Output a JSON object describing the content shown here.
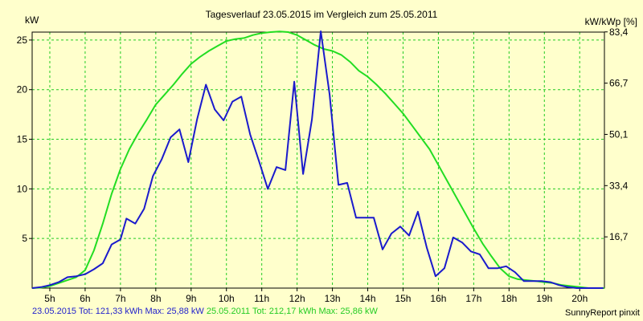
{
  "chart_data": {
    "type": "line",
    "title": "Tagesverlauf 23.05.2015 im Vergleich zum 25.05.2011",
    "ylabel_left": "kW",
    "ylabel_right": "kW/kWp [%]",
    "x_unit": "hour",
    "xlim": [
      4.5,
      20.7
    ],
    "ylim": [
      0,
      25.8
    ],
    "grid": true,
    "x_ticks": [
      {
        "value": 5,
        "label": "5h"
      },
      {
        "value": 6,
        "label": "6h"
      },
      {
        "value": 7,
        "label": "7h"
      },
      {
        "value": 8,
        "label": "8h"
      },
      {
        "value": 9,
        "label": "9h"
      },
      {
        "value": 10,
        "label": "10h"
      },
      {
        "value": 11,
        "label": "11h"
      },
      {
        "value": 12,
        "label": "12h"
      },
      {
        "value": 13,
        "label": "13h"
      },
      {
        "value": 14,
        "label": "14h"
      },
      {
        "value": 15,
        "label": "15h"
      },
      {
        "value": 16,
        "label": "16h"
      },
      {
        "value": 17,
        "label": "17h"
      },
      {
        "value": 18,
        "label": "18h"
      },
      {
        "value": 19,
        "label": "19h"
      },
      {
        "value": 20,
        "label": "20h"
      }
    ],
    "y_ticks_left": [
      {
        "value": 5,
        "label": "5"
      },
      {
        "value": 10,
        "label": "10"
      },
      {
        "value": 15,
        "label": "15"
      },
      {
        "value": 20,
        "label": "20"
      },
      {
        "value": 25,
        "label": "25"
      }
    ],
    "y_ticks_right": [
      {
        "value": 5.164,
        "label": "16,7"
      },
      {
        "value": 10.328,
        "label": "33,4"
      },
      {
        "value": 15.492,
        "label": "50,1"
      },
      {
        "value": 20.656,
        "label": "66,7"
      },
      {
        "value": 25.82,
        "label": "83,4"
      }
    ],
    "series": [
      {
        "name": "23.05.2015",
        "stats": "23.05.2015 Tot: 121,33 kWh Max: 25,88 kW",
        "color": "#1a1acc",
        "x": [
          4.5,
          4.75,
          5.0,
          5.25,
          5.5,
          5.75,
          6.0,
          6.25,
          6.5,
          6.75,
          7.0,
          7.17,
          7.42,
          7.67,
          7.92,
          8.17,
          8.42,
          8.67,
          8.92,
          9.17,
          9.42,
          9.67,
          9.92,
          10.17,
          10.42,
          10.67,
          10.92,
          11.17,
          11.42,
          11.67,
          11.92,
          12.17,
          12.42,
          12.67,
          12.92,
          13.17,
          13.42,
          13.67,
          13.92,
          14.17,
          14.42,
          14.67,
          14.92,
          15.17,
          15.42,
          15.67,
          15.92,
          16.17,
          16.42,
          16.67,
          16.92,
          17.17,
          17.42,
          17.67,
          17.92,
          18.17,
          18.42,
          18.67,
          18.92,
          19.17,
          19.42,
          19.67,
          19.92,
          20.17,
          20.42,
          20.67
        ],
        "y": [
          0,
          0.1,
          0.3,
          0.6,
          1.1,
          1.2,
          1.4,
          1.9,
          2.5,
          4.4,
          4.9,
          7.0,
          6.5,
          8.0,
          11.3,
          13.0,
          15.2,
          16.0,
          12.7,
          17.0,
          20.5,
          18.0,
          16.9,
          18.8,
          19.3,
          15.5,
          12.8,
          10.0,
          12.2,
          11.9,
          20.8,
          11.5,
          17.0,
          25.88,
          19.5,
          10.4,
          10.6,
          7.1,
          7.1,
          7.1,
          3.9,
          5.5,
          6.2,
          5.3,
          7.7,
          4.1,
          1.2,
          2.0,
          5.1,
          4.6,
          3.7,
          3.4,
          2.0,
          2.0,
          2.2,
          1.6,
          0.7,
          0.7,
          0.7,
          0.6,
          0.3,
          0.1,
          0,
          0,
          0,
          0
        ]
      },
      {
        "name": "25.05.2011",
        "stats": "25.05.2011 Tot: 212,17 kWh Max: 25,86 kW",
        "color": "#22dd22",
        "x": [
          4.5,
          4.75,
          5.0,
          5.25,
          5.5,
          5.75,
          6.0,
          6.25,
          6.5,
          6.75,
          7.0,
          7.25,
          7.5,
          7.75,
          8.0,
          8.25,
          8.5,
          8.75,
          9.0,
          9.25,
          9.5,
          9.75,
          10.0,
          10.25,
          10.5,
          10.75,
          11.0,
          11.25,
          11.5,
          11.75,
          12.0,
          12.25,
          12.5,
          12.75,
          13.0,
          13.25,
          13.5,
          13.75,
          14.0,
          14.25,
          14.5,
          14.75,
          15.0,
          15.25,
          15.5,
          15.75,
          16.0,
          16.25,
          16.5,
          16.75,
          17.0,
          17.25,
          17.5,
          17.75,
          18.0,
          18.25,
          18.5,
          18.75,
          19.0,
          19.25,
          19.5,
          19.75,
          20.0,
          20.25,
          20.5,
          20.7
        ],
        "y": [
          0,
          0.05,
          0.2,
          0.5,
          0.8,
          1.1,
          1.8,
          3.8,
          6.5,
          9.5,
          12.0,
          14.0,
          15.6,
          17.0,
          18.5,
          19.5,
          20.5,
          21.6,
          22.6,
          23.3,
          23.9,
          24.4,
          24.9,
          25.1,
          25.2,
          25.5,
          25.7,
          25.8,
          25.86,
          25.8,
          25.5,
          25.0,
          24.5,
          24.1,
          23.9,
          23.5,
          22.8,
          21.9,
          21.3,
          20.5,
          19.6,
          18.6,
          17.6,
          16.4,
          15.2,
          14.0,
          12.4,
          10.8,
          9.2,
          7.6,
          6.0,
          4.5,
          3.2,
          2.0,
          1.2,
          0.9,
          0.8,
          0.7,
          0.6,
          0.5,
          0.3,
          0.2,
          0.1,
          0,
          0,
          0
        ]
      }
    ]
  },
  "footer": {
    "credit": "SunnyReport pinxit"
  }
}
